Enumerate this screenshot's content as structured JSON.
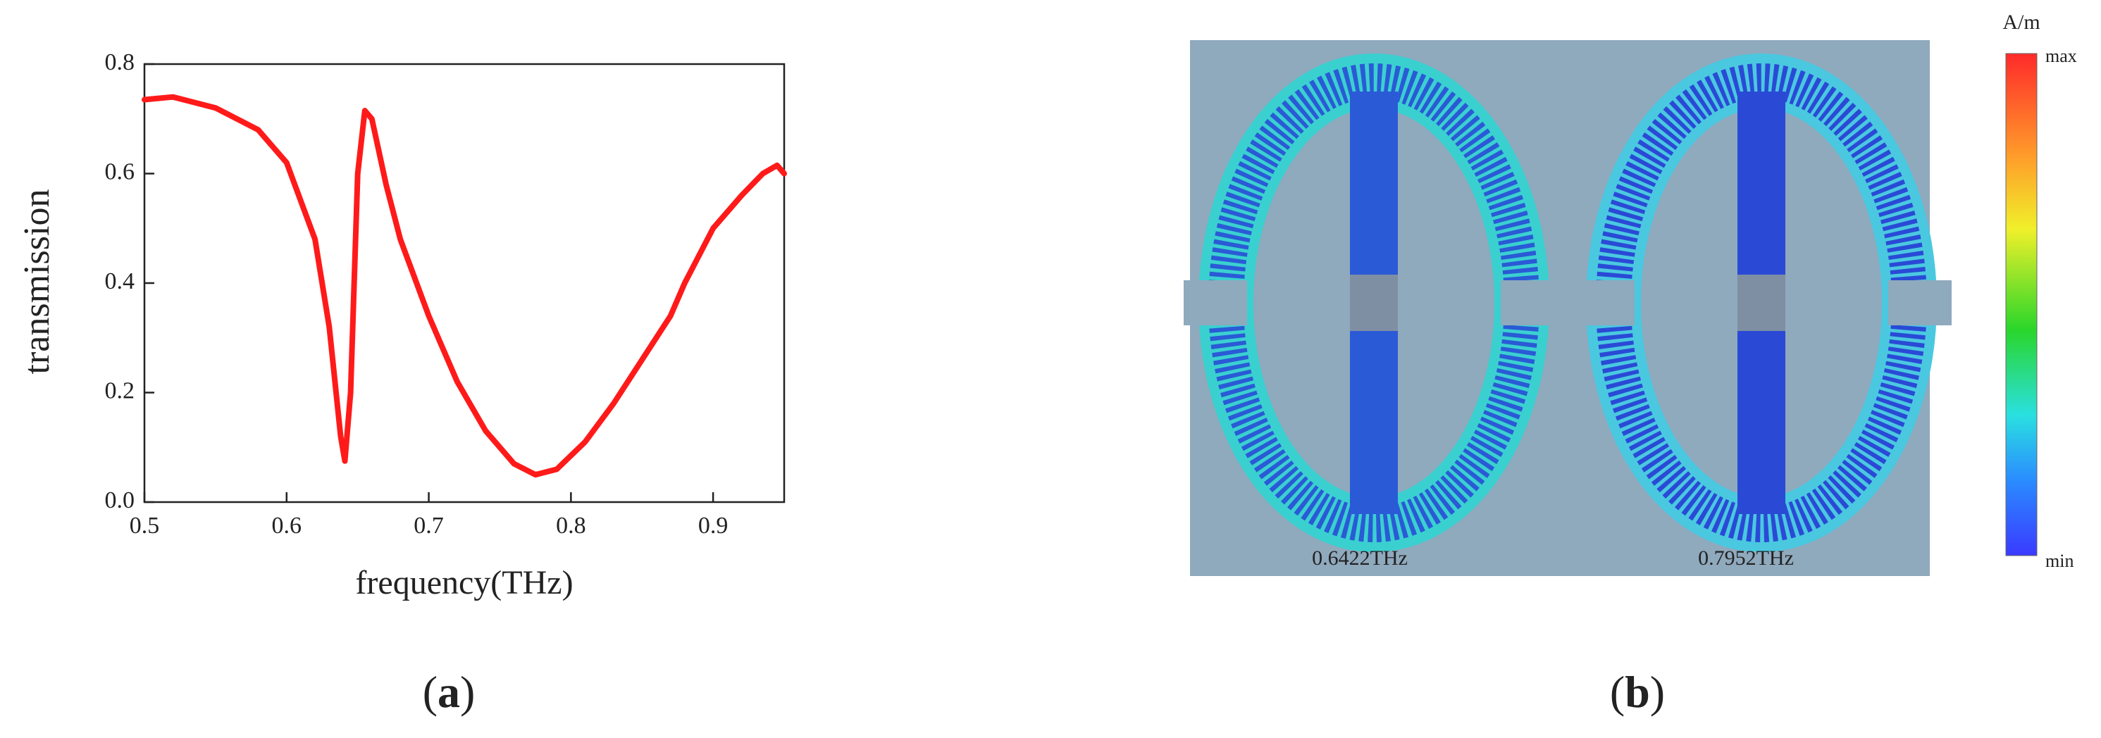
{
  "chart_data": {
    "type": "line",
    "xlabel": "frequency(THz)",
    "ylabel": "transmission",
    "x": [
      0.5,
      0.52,
      0.55,
      0.58,
      0.6,
      0.62,
      0.63,
      0.638,
      0.641,
      0.645,
      0.65,
      0.655,
      0.66,
      0.67,
      0.68,
      0.7,
      0.72,
      0.74,
      0.76,
      0.775,
      0.79,
      0.81,
      0.83,
      0.85,
      0.86,
      0.87,
      0.88,
      0.9,
      0.92,
      0.935,
      0.945,
      0.95
    ],
    "values": [
      0.735,
      0.74,
      0.72,
      0.68,
      0.62,
      0.48,
      0.32,
      0.12,
      0.075,
      0.2,
      0.6,
      0.715,
      0.7,
      0.58,
      0.48,
      0.34,
      0.22,
      0.13,
      0.07,
      0.05,
      0.06,
      0.11,
      0.18,
      0.26,
      0.3,
      0.34,
      0.4,
      0.5,
      0.56,
      0.6,
      0.615,
      0.6
    ],
    "color": "#ff1a1a",
    "xlim": [
      0.5,
      0.95
    ],
    "xticks": [
      0.5,
      0.6,
      0.7,
      0.8,
      0.9
    ],
    "ylim": [
      0,
      0.8
    ],
    "yticks": [
      {
        "value": 0,
        "label": "0.0"
      },
      0.2,
      0.4,
      0.6,
      0.8
    ]
  },
  "field_map": {
    "unit": "A/m",
    "max_label": "max",
    "min_label": "min",
    "frequencies": [
      "0.6422THz",
      "0.7952THz"
    ]
  },
  "panel_labels": [
    "(a)",
    "(b)"
  ]
}
